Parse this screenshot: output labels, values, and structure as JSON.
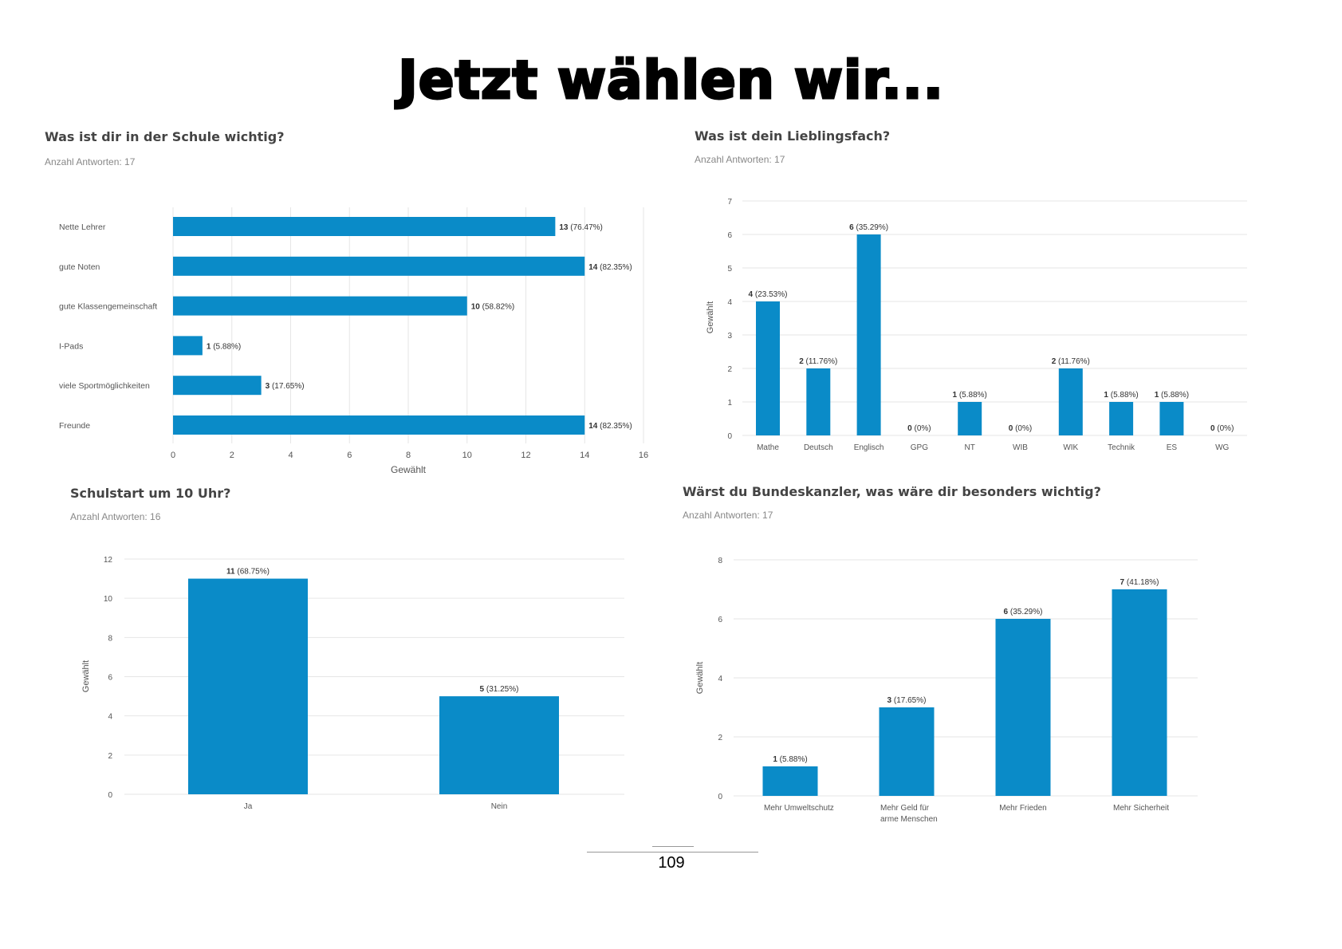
{
  "page": {
    "title": "Jetzt wählen wir...",
    "page_number": "109"
  },
  "colors": {
    "bar": "#0a8bc8",
    "grid": "#e6e6e6",
    "text": "#555555"
  },
  "chart_data": [
    {
      "type": "bar",
      "orientation": "horizontal",
      "title": "Was ist dir in der Schule wichtig?",
      "subtitle": "Anzahl Antworten: 17",
      "categories": [
        "Nette Lehrer",
        "gute Noten",
        "gute Klassengemeinschaft",
        "I-Pads",
        "viele Sportmöglichkeiten",
        "Freunde"
      ],
      "values": [
        13,
        14,
        10,
        1,
        3,
        14
      ],
      "percent_labels": [
        "(76.47%)",
        "(82.35%)",
        "(58.82%)",
        "(5.88%)",
        "(17.65%)",
        "(82.35%)"
      ],
      "xlabel": "Gewählt",
      "ylabel": "",
      "xlim": [
        0,
        16
      ],
      "ticks": [
        0,
        2,
        4,
        6,
        8,
        10,
        12,
        14,
        16
      ],
      "grid": true
    },
    {
      "type": "bar",
      "orientation": "vertical",
      "title": "Was ist dein Lieblingsfach?",
      "subtitle": "Anzahl Antworten: 17",
      "categories": [
        "Mathe",
        "Deutsch",
        "Englisch",
        "GPG",
        "NT",
        "WIB",
        "WIK",
        "Technik",
        "ES",
        "WG"
      ],
      "values": [
        4,
        2,
        6,
        0,
        1,
        0,
        2,
        1,
        1,
        0
      ],
      "percent_labels": [
        "(23.53%)",
        "(11.76%)",
        "(35.29%)",
        "(0%)",
        "(5.88%)",
        "(0%)",
        "(11.76%)",
        "(5.88%)",
        "(5.88%)",
        "(0%)"
      ],
      "xlabel": "",
      "ylabel": "Gewählt",
      "ylim": [
        0,
        7
      ],
      "ticks": [
        0,
        1,
        2,
        3,
        4,
        5,
        6,
        7
      ],
      "grid": true
    },
    {
      "type": "bar",
      "orientation": "vertical",
      "title": "Schulstart um 10 Uhr?",
      "subtitle": "Anzahl Antworten: 16",
      "categories": [
        "Ja",
        "Nein"
      ],
      "values": [
        11,
        5
      ],
      "percent_labels": [
        "(68.75%)",
        "(31.25%)"
      ],
      "xlabel": "",
      "ylabel": "Gewählt",
      "ylim": [
        0,
        12
      ],
      "ticks": [
        0,
        2,
        4,
        6,
        8,
        10,
        12
      ],
      "grid": true
    },
    {
      "type": "bar",
      "orientation": "vertical",
      "title": "Wärst du Bundeskanzler, was wäre dir besonders wichtig?",
      "subtitle": "Anzahl Antworten: 17",
      "categories": [
        "Mehr Umweltschutz",
        "Mehr Geld für arme Menschen",
        "Mehr Frieden",
        "Mehr Sicherheit"
      ],
      "values": [
        1,
        3,
        6,
        7
      ],
      "percent_labels": [
        "(5.88%)",
        "(17.65%)",
        "(35.29%)",
        "(41.18%)"
      ],
      "xlabel": "",
      "ylabel": "Gewählt",
      "ylim": [
        0,
        8
      ],
      "ticks": [
        0,
        2,
        4,
        6,
        8
      ],
      "grid": true
    }
  ]
}
